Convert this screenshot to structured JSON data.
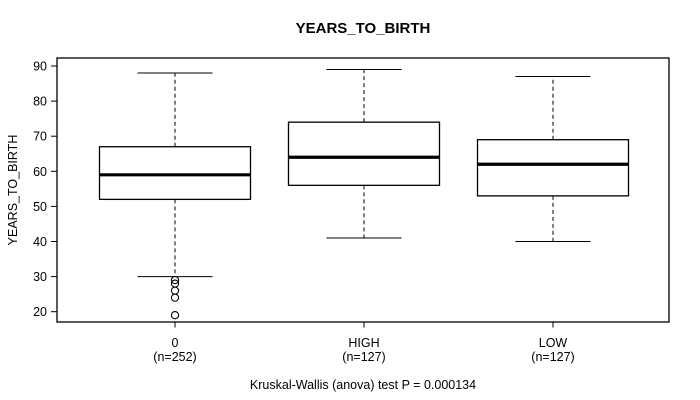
{
  "chart_data": {
    "type": "boxplot",
    "title": "YEARS_TO_BIRTH",
    "ylabel": "YEARS_TO_BIRTH",
    "xlabel": "",
    "footer": "Kruskal-Wallis (anova) test P = 0.000134",
    "y_ticks": [
      20,
      30,
      40,
      50,
      60,
      70,
      80,
      90
    ],
    "ylim": [
      17,
      92
    ],
    "grid": false,
    "legend": "none",
    "colors": {
      "line": "#000000",
      "box_fill": "#ffffff",
      "background": "#ffffff"
    },
    "groups": [
      {
        "label": "0",
        "n_label": "(n=252)",
        "n": 252,
        "whisker_low": 30,
        "q1": 52,
        "median": 59,
        "q3": 67,
        "whisker_high": 88,
        "outliers": [
          29,
          28,
          26,
          24,
          19
        ]
      },
      {
        "label": "HIGH",
        "n_label": "(n=127)",
        "n": 127,
        "whisker_low": 41,
        "q1": 56,
        "median": 64,
        "q3": 74,
        "whisker_high": 89,
        "outliers": []
      },
      {
        "label": "LOW",
        "n_label": "(n=127)",
        "n": 127,
        "whisker_low": 40,
        "q1": 53,
        "median": 62,
        "q3": 69,
        "whisker_high": 87,
        "outliers": []
      }
    ]
  }
}
